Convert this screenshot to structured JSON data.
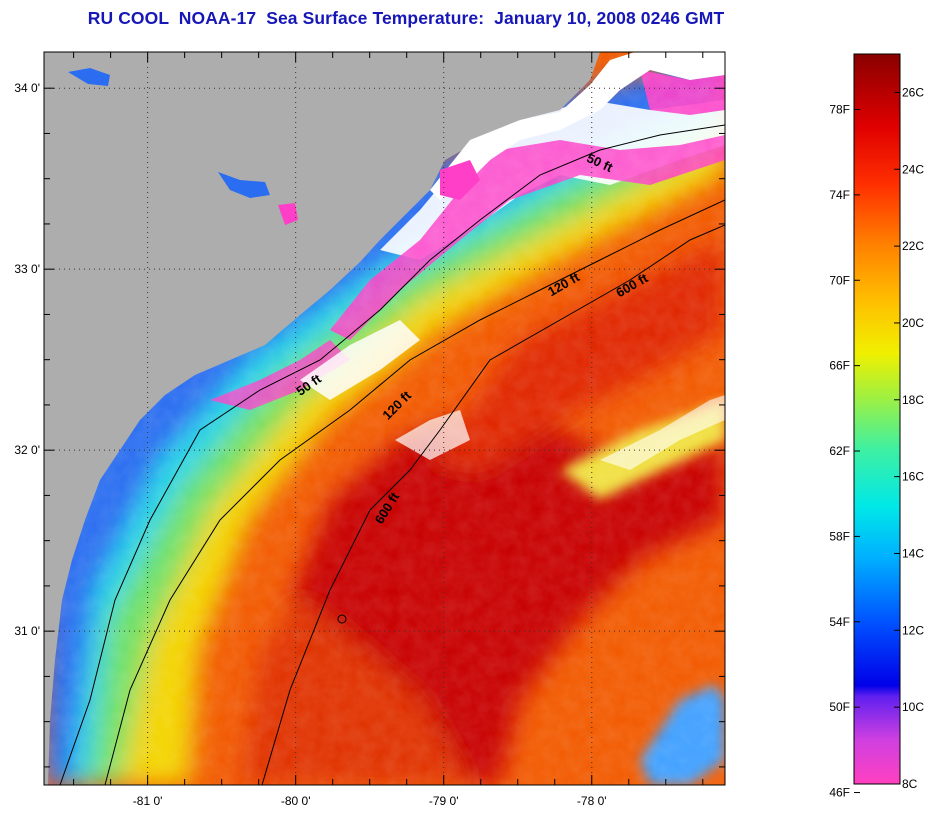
{
  "title": "RU COOL  NOAA-17  Sea Surface Temperature:  January 10, 2008 0246 GMT",
  "map": {
    "lat_ticks": [
      {
        "value": 34,
        "label": "34 0'"
      },
      {
        "value": 33,
        "label": "33 0'"
      },
      {
        "value": 32,
        "label": "32 0'"
      },
      {
        "value": 31,
        "label": "31 0'"
      }
    ],
    "lon_ticks": [
      {
        "value": -81,
        "label": "-81 0'"
      },
      {
        "value": -80,
        "label": "-80 0'"
      },
      {
        "value": -79,
        "label": "-79 0'"
      },
      {
        "value": -78,
        "label": "-78 0'"
      }
    ],
    "lon_range": [
      -81.7,
      -77.1
    ],
    "lat_range": [
      30.15,
      34.2
    ],
    "depth_labels": [
      "50 ft",
      "50 ft",
      "120 ft",
      "120 ft",
      "600 ft",
      "600 ft"
    ],
    "colors": {
      "land": "#adadad",
      "cloud": "#ffffff",
      "cold_water": "#ff3fc8",
      "warm_water": "#c80000"
    }
  },
  "colorbar": {
    "fahrenheit_labels": [
      "78F",
      "74F",
      "70F",
      "66F",
      "62F",
      "58F",
      "54F",
      "50F",
      "46F"
    ],
    "celsius_labels": [
      "26C",
      "24C",
      "22C",
      "20C",
      "18C",
      "16C",
      "14C",
      "12C",
      "10C",
      "8C"
    ],
    "range_celsius": [
      8,
      27
    ]
  }
}
